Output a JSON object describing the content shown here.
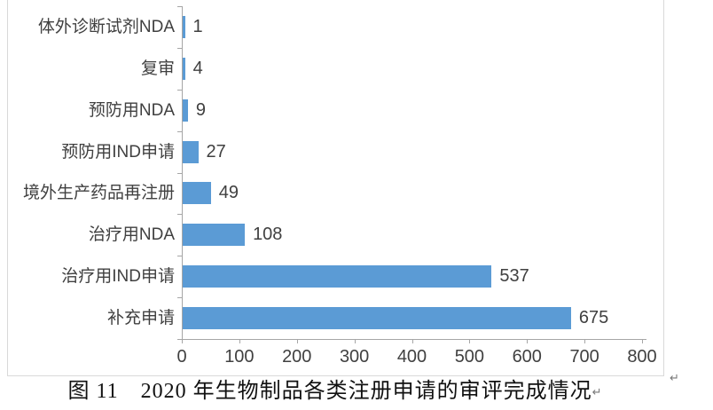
{
  "chart_data": {
    "type": "bar",
    "orientation": "horizontal",
    "categories": [
      "体外诊断试剂NDA",
      "复审",
      "预防用NDA",
      "预防用IND申请",
      "境外生产药品再注册",
      "治疗用NDA",
      "治疗用IND申请",
      "补充申请"
    ],
    "values": [
      1,
      4,
      9,
      27,
      49,
      108,
      537,
      675
    ],
    "data_labels": [
      "1",
      "4",
      "9",
      "27",
      "49",
      "108",
      "537",
      "675"
    ],
    "xlim": [
      0,
      800
    ],
    "x_ticks": [
      0,
      100,
      200,
      300,
      400,
      500,
      600,
      700,
      800
    ],
    "grid": false,
    "legend": false,
    "bar_color": "#5b9bd5",
    "axis_color": "#a6a6a6",
    "label_color": "#404040"
  },
  "caption": {
    "text": "图 11　2020 年生物制品各类注册申请的审评完成情况"
  },
  "marks": {
    "paragraph_mark": "↵"
  }
}
